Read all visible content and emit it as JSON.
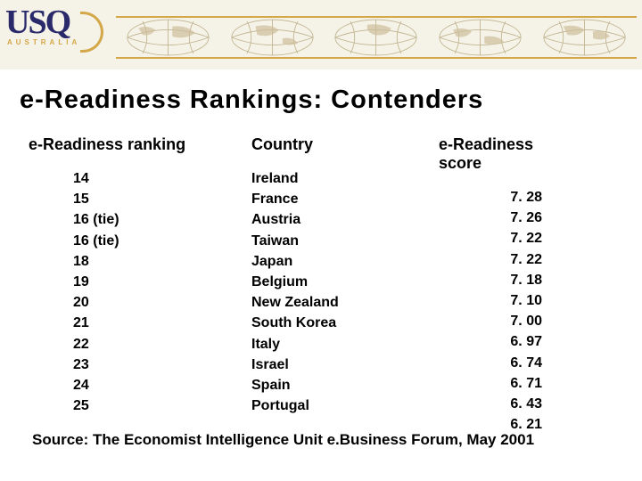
{
  "logo": {
    "text": "USQ",
    "sub": "AUSTRALIA"
  },
  "title": "e-Readiness Rankings:  Contenders",
  "table": {
    "headers": {
      "rank": "e-Readiness ranking",
      "country": "Country",
      "score": "e-Readiness score"
    },
    "rows": [
      {
        "rank": "14",
        "country": "Ireland",
        "score": "7. 28"
      },
      {
        "rank": "15",
        "country": "France",
        "score": "7. 26"
      },
      {
        "rank": "16 (tie)",
        "country": "Austria",
        "score": "7. 22"
      },
      {
        "rank": "16 (tie)",
        "country": "Taiwan",
        "score": "7. 22"
      },
      {
        "rank": "18",
        "country": "Japan",
        "score": "7. 18"
      },
      {
        "rank": "19",
        "country": "Belgium",
        "score": "7. 10"
      },
      {
        "rank": "20",
        "country": "New Zealand",
        "score": "7. 00"
      },
      {
        "rank": "21",
        "country": "South Korea",
        "score": "6. 97"
      },
      {
        "rank": "22",
        "country": "Italy",
        "score": "6. 74"
      },
      {
        "rank": "23",
        "country": "Israel",
        "score": "6. 71"
      },
      {
        "rank": "24",
        "country": "Spain",
        "score": "6. 43"
      },
      {
        "rank": "25",
        "country": "Portugal",
        "score": "6. 21"
      }
    ]
  },
  "source": "Source:  The Economist Intelligence Unit e.Business Forum, May 2001",
  "style": {
    "bg": "#ffffff",
    "header_bg": "#f5f2e8",
    "accent": "#d4a848",
    "logo_color": "#2a2a6a",
    "text_color": "#000000",
    "title_fontsize": 29,
    "header_fontsize": 18,
    "body_fontsize": 16,
    "source_fontsize": 17,
    "font_family": "Arial"
  }
}
